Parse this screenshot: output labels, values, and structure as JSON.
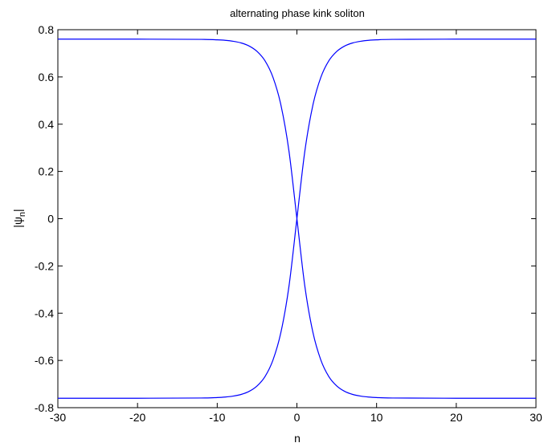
{
  "chart_data": {
    "type": "line",
    "title": "alternating phase kink soliton",
    "xlabel": "n",
    "ylabel_main": "|ψ",
    "ylabel_sub": "n",
    "ylabel_close": "|",
    "xlim": [
      -30,
      30
    ],
    "ylim": [
      -0.8,
      0.8
    ],
    "xticks": [
      -30,
      -20,
      -10,
      0,
      10,
      20,
      30
    ],
    "yticks": [
      -0.8,
      -0.6,
      -0.4,
      -0.2,
      0,
      0.2,
      0.4,
      0.6,
      0.8
    ],
    "xtick_labels": [
      "-30",
      "-20",
      "-10",
      "0",
      "10",
      "20",
      "30"
    ],
    "ytick_labels": [
      "-0.8",
      "-0.6",
      "-0.4",
      "-0.2",
      "0",
      "0.2",
      "0.4",
      "0.6",
      "0.8"
    ],
    "grid": false,
    "line_color": "#0000ff",
    "series": [
      {
        "x": [
          -30,
          -20,
          -12,
          -10,
          -9,
          -8,
          -7,
          -6,
          -5,
          -4,
          -3,
          -2,
          -1,
          0,
          1,
          2,
          3,
          4,
          5,
          6,
          7,
          8,
          9,
          10,
          12,
          20,
          30
        ],
        "y": [
          0.76,
          0.76,
          0.759,
          0.757,
          0.755,
          0.751,
          0.744,
          0.731,
          0.708,
          0.668,
          0.598,
          0.48,
          0.287,
          0,
          -0.287,
          -0.48,
          -0.598,
          -0.668,
          -0.708,
          -0.731,
          -0.744,
          -0.751,
          -0.755,
          -0.757,
          -0.759,
          -0.76,
          -0.76
        ]
      },
      {
        "x": [
          -30,
          -20,
          -12,
          -10,
          -9,
          -8,
          -7,
          -6,
          -5,
          -4,
          -3,
          -2,
          -1,
          0,
          1,
          2,
          3,
          4,
          5,
          6,
          7,
          8,
          9,
          10,
          12,
          20,
          30
        ],
        "y": [
          -0.76,
          -0.76,
          -0.759,
          -0.757,
          -0.755,
          -0.751,
          -0.744,
          -0.731,
          -0.708,
          -0.668,
          -0.598,
          -0.48,
          -0.287,
          0,
          0.287,
          0.48,
          0.598,
          0.668,
          0.708,
          0.731,
          0.744,
          0.751,
          0.755,
          0.757,
          0.759,
          0.76,
          0.76
        ]
      }
    ]
  }
}
